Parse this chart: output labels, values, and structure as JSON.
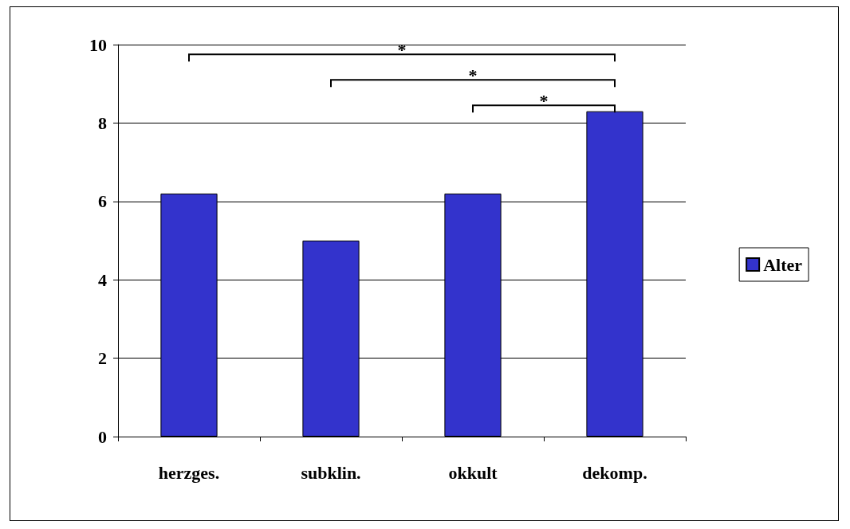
{
  "chart_data": {
    "type": "bar",
    "categories": [
      "herzges.",
      "subklin.",
      "okkult",
      "dekomp."
    ],
    "series": [
      {
        "name": "Alter",
        "color": "#3333cc",
        "values": [
          6.2,
          5.0,
          6.2,
          8.3
        ]
      }
    ],
    "ylim": [
      0,
      10
    ],
    "yticks": [
      0,
      2,
      4,
      6,
      8,
      10
    ],
    "grid": "y",
    "legend": "right",
    "annotations": [
      "*",
      "*",
      "*"
    ]
  }
}
